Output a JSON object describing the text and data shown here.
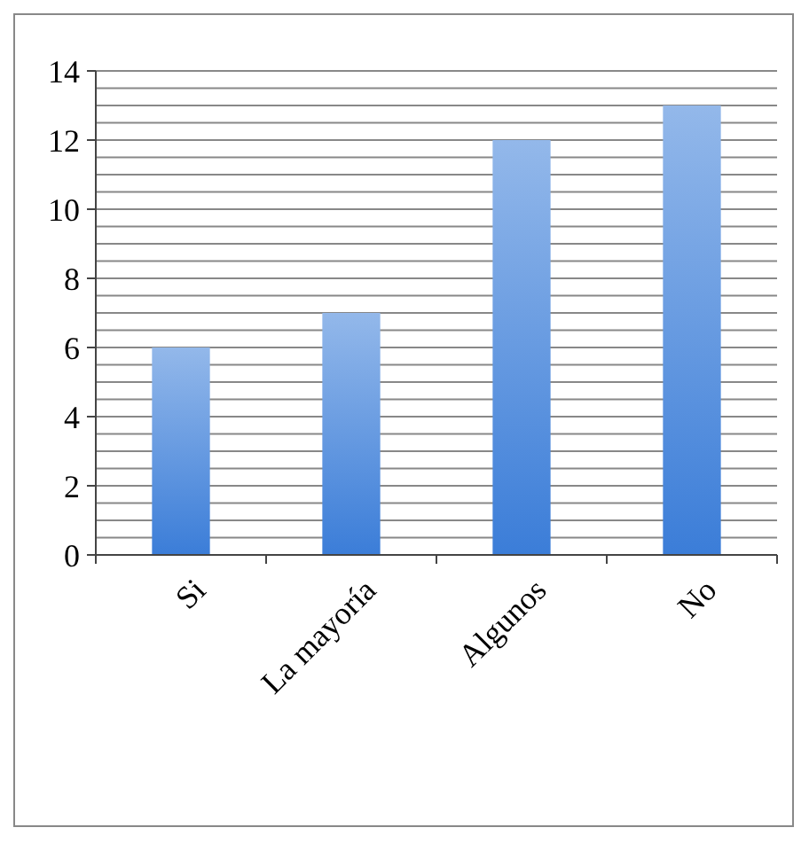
{
  "chart_data": {
    "type": "bar",
    "categories": [
      "Si",
      "La mayoría",
      "Algunos",
      "No"
    ],
    "values": [
      6,
      7,
      12,
      13
    ],
    "color": "#3b7dd8",
    "ylim": [
      0,
      14
    ],
    "yticks": [
      0,
      {
        "value": 0.5,
        "label": null
      },
      {
        "value": 1,
        "label": null
      },
      {
        "value": 1.5,
        "label": null
      },
      2,
      {
        "value": 2.5,
        "label": null
      },
      {
        "value": 3,
        "label": null
      },
      {
        "value": 3.5,
        "label": null
      },
      4,
      {
        "value": 4.5,
        "label": null
      },
      {
        "value": 5,
        "label": null
      },
      {
        "value": 5.5,
        "label": null
      },
      6,
      {
        "value": 6.5,
        "label": null
      },
      {
        "value": 7,
        "label": null
      },
      {
        "value": 7.5,
        "label": null
      },
      8,
      {
        "value": 8.5,
        "label": null
      },
      {
        "value": 9,
        "label": null
      },
      {
        "value": 9.5,
        "label": null
      },
      10,
      {
        "value": 10.5,
        "label": null
      },
      {
        "value": 11,
        "label": null
      },
      {
        "value": 11.5,
        "label": null
      },
      12,
      {
        "value": 12.5,
        "label": null
      },
      {
        "value": 13,
        "label": null
      },
      {
        "value": 13.5,
        "label": null
      },
      14
    ],
    "grid": "y"
  }
}
